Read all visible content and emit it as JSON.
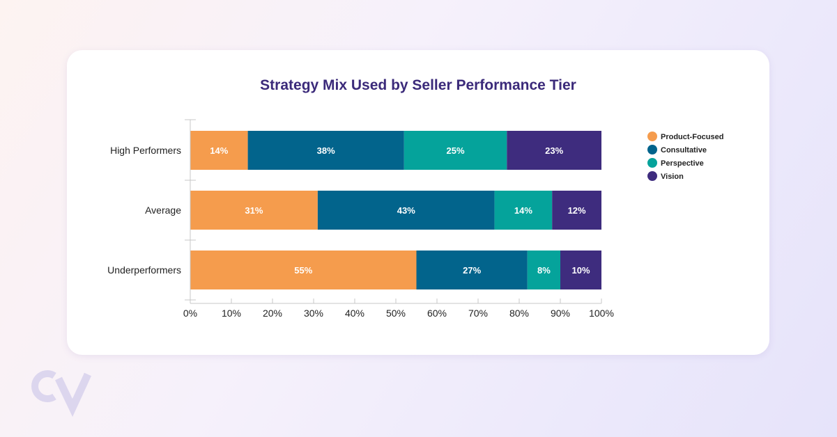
{
  "colors": {
    "title": "#3b2a7a",
    "axis": "#c7c7c7",
    "logo": "#dcd6ee"
  },
  "logo": {
    "text": "CV",
    "icon": "cv-logo-icon"
  },
  "chart_data": {
    "type": "bar",
    "orientation": "horizontal",
    "stacked": true,
    "title": "Strategy Mix Used by Seller Performance Tier",
    "categories": [
      "High Performers",
      "Average",
      "Underperformers"
    ],
    "series": [
      {
        "name": "Product-Focused",
        "color": "#f59c4d",
        "values": [
          14,
          31,
          55
        ],
        "labels": [
          "14%",
          "31%",
          "55%"
        ]
      },
      {
        "name": "Consultative",
        "color": "#02648c",
        "values": [
          38,
          43,
          27
        ],
        "labels": [
          "38%",
          "43%",
          "27%"
        ]
      },
      {
        "name": "Perspective",
        "color": "#05a39b",
        "values": [
          25,
          14,
          8
        ],
        "labels": [
          "25%",
          "14%",
          "8%"
        ]
      },
      {
        "name": "Vision",
        "color": "#3e2c7e",
        "values": [
          23,
          12,
          10
        ],
        "labels": [
          "23%",
          "12%",
          "10%"
        ]
      }
    ],
    "xlim": [
      0,
      100
    ],
    "xticks": [
      "0%",
      "10%",
      "20%",
      "30%",
      "40%",
      "50%",
      "60%",
      "70%",
      "80%",
      "90%",
      "100%"
    ],
    "legend_position": "right",
    "grid": false
  }
}
